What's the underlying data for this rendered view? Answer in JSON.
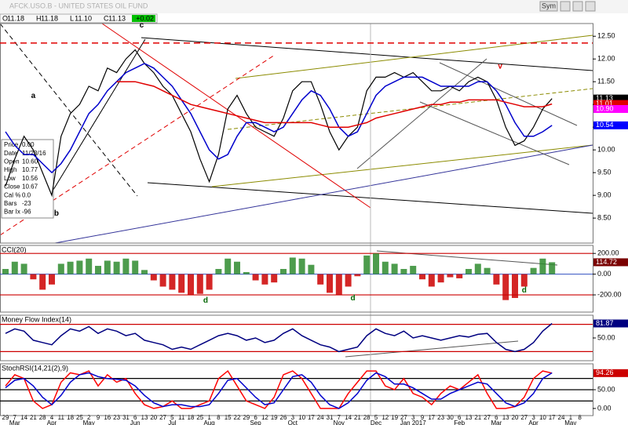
{
  "header": {
    "title": "AFCK.USO.B - UNITED STATES OIL FUND",
    "toolbar": [
      "Sym"
    ],
    "ohlc": [
      {
        "label": "O",
        "value": "11.18"
      },
      {
        "label": "H",
        "value": "11.18"
      },
      {
        "label": "L",
        "value": "11.10"
      },
      {
        "label": "C",
        "value": "11.13"
      }
    ],
    "change": "+0.02"
  },
  "info_box": [
    [
      "Price",
      "0.00"
    ],
    [
      "Date",
      "11/23/16"
    ],
    [
      "Open",
      "10.60"
    ],
    [
      "High",
      "10.77"
    ],
    [
      "Low",
      "10.56"
    ],
    [
      "Close",
      "10.67"
    ],
    [
      "Cal %",
      "0.0"
    ],
    [
      "Bars",
      "-23"
    ],
    [
      "Bar Ix",
      "-96"
    ]
  ],
  "x_axis": {
    "days": [
      "29",
      "7",
      "14",
      "21",
      "28",
      "4",
      "11",
      "18",
      "25",
      "2",
      "9",
      "16",
      "23",
      "31",
      "6",
      "13",
      "20",
      "27",
      "5",
      "11",
      "18",
      "25",
      "1",
      "8",
      "15",
      "22",
      "29",
      "6",
      "12",
      "19",
      "26",
      "3",
      "10",
      "17",
      "24",
      "31",
      "7",
      "14",
      "21",
      "28",
      "5",
      "12",
      "19",
      "27",
      "3",
      "9",
      "17",
      "23",
      "30",
      "6",
      "13",
      "21",
      "27",
      "6",
      "13",
      "20",
      "27",
      "3",
      "10",
      "17",
      "24",
      "1",
      "8"
    ],
    "months": [
      {
        "label": "Mar",
        "at": 1
      },
      {
        "label": "Apr",
        "at": 5
      },
      {
        "label": "May",
        "at": 9
      },
      {
        "label": "Jun",
        "at": 14
      },
      {
        "label": "Jul",
        "at": 18
      },
      {
        "label": "Aug",
        "at": 22
      },
      {
        "label": "Sep",
        "at": 27
      },
      {
        "label": "Oct",
        "at": 31
      },
      {
        "label": "Nov",
        "at": 36
      },
      {
        "label": "Dec",
        "at": 40
      },
      {
        "label": "Jan 2017",
        "at": 44
      },
      {
        "label": "Feb",
        "at": 49
      },
      {
        "label": "Mar",
        "at": 53
      },
      {
        "label": "Apr",
        "at": 57
      },
      {
        "label": "May",
        "at": 61
      }
    ]
  },
  "chart_data": [
    {
      "type": "line",
      "ylim": [
        7.95,
        12.78
      ],
      "yticks": [
        {
          "value": 12.5,
          "label": "12.50"
        },
        {
          "value": 12,
          "label": "12.00"
        },
        {
          "value": 11.5,
          "label": "11.50"
        },
        {
          "value": 11,
          "label": "11.00"
        },
        {
          "value": 10.5,
          "label": "10.50"
        },
        {
          "value": 10,
          "label": "10.00"
        },
        {
          "value": 9.5,
          "label": "9.50"
        },
        {
          "value": 9,
          "label": "9.00"
        },
        {
          "value": 8.5,
          "label": "8.50"
        }
      ],
      "reference_lines": [
        {
          "value": 12.35,
          "color": "#e00000"
        }
      ],
      "series": [
        {
          "name": "Price",
          "color": "#000000",
          "values": [
            9.2,
            9.8,
            10.3,
            10.0,
            9.5,
            9.0,
            10.3,
            10.8,
            11.0,
            11.4,
            11.3,
            11.8,
            11.7,
            12.0,
            12.2,
            11.9,
            11.7,
            11.4,
            11.2,
            10.8,
            10.4,
            9.8,
            9.3,
            9.9,
            10.9,
            11.2,
            10.8,
            10.5,
            10.4,
            10.3,
            10.7,
            11.3,
            11.5,
            11.5,
            11.0,
            10.4,
            10.0,
            10.3,
            10.5,
            11.3,
            11.6,
            11.6,
            11.7,
            11.6,
            11.7,
            11.5,
            11.3,
            11.3,
            11.4,
            11.3,
            11.5,
            11.6,
            11.5,
            11.1,
            10.5,
            10.1,
            10.2,
            10.5,
            10.9,
            11.13
          ]
        },
        {
          "name": "MA",
          "color": "#0000cc",
          "values": [
            10.4,
            10.1,
            9.9,
            9.9,
            9.7,
            9.5,
            9.7,
            10.0,
            10.4,
            10.8,
            11.0,
            11.3,
            11.5,
            11.7,
            11.8,
            11.9,
            11.8,
            11.6,
            11.4,
            11.1,
            10.8,
            10.4,
            10.0,
            9.8,
            9.9,
            10.3,
            10.6,
            10.6,
            10.5,
            10.4,
            10.5,
            10.8,
            11.1,
            11.3,
            11.2,
            10.9,
            10.5,
            10.3,
            10.4,
            10.8,
            11.2,
            11.4,
            11.5,
            11.6,
            11.6,
            11.6,
            11.5,
            11.4,
            11.4,
            11.4,
            11.4,
            11.5,
            11.5,
            11.3,
            11.0,
            10.6,
            10.3,
            10.3,
            10.4,
            10.54
          ]
        },
        {
          "name": "MA long",
          "color": "#e00000",
          "values": [
            null,
            null,
            null,
            null,
            null,
            null,
            null,
            null,
            null,
            null,
            null,
            null,
            11.5,
            11.5,
            11.5,
            11.45,
            11.4,
            11.3,
            11.2,
            11.1,
            11.0,
            10.95,
            10.9,
            10.85,
            10.8,
            10.75,
            10.7,
            10.65,
            10.6,
            10.6,
            10.6,
            10.6,
            10.6,
            10.6,
            10.55,
            10.5,
            10.5,
            10.5,
            10.55,
            10.6,
            10.7,
            10.75,
            10.8,
            10.85,
            10.9,
            10.95,
            11.0,
            11.0,
            11.05,
            11.05,
            11.1,
            11.1,
            11.1,
            11.1,
            11.05,
            11.0,
            10.95,
            10.95,
            10.95,
            11.01
          ]
        }
      ],
      "price_tags": [
        {
          "value": 11.13,
          "label": "11.13",
          "color": "#000000",
          "text_color": "#ffffff"
        },
        {
          "value": 11.01,
          "label": "11.01",
          "color": "#e00000",
          "text_color": "#ffffff"
        },
        {
          "value": 10.9,
          "label": "10.90",
          "color": "#ff00ff",
          "text_color": "#ffffff"
        },
        {
          "value": 10.54,
          "label": "10.54",
          "color": "#0000ff",
          "text_color": "#ffffff"
        }
      ],
      "annotations": [
        {
          "text": "a",
          "x": 3,
          "y": 11.19,
          "color": "#000000"
        },
        {
          "text": "b",
          "x": 5.5,
          "y": 8.6,
          "color": "#000000"
        },
        {
          "text": "c",
          "x": 14.7,
          "y": 12.74,
          "color": "#000000"
        },
        {
          "text": "v",
          "x": 53.4,
          "y": 11.83,
          "color": "#e00000"
        }
      ]
    },
    {
      "type": "bar",
      "title": "CCI(20)",
      "ylim": [
        -366,
        277
      ],
      "up_color": "#2e8b2e",
      "down_color": "#cc0000",
      "yticks": [
        {
          "value": 200,
          "label": "200.00"
        },
        {
          "value": 0,
          "label": "0.00"
        },
        {
          "value": -200,
          "label": "-200.00"
        }
      ],
      "levels": [
        200,
        -200
      ],
      "values": [
        50,
        120,
        100,
        -50,
        -150,
        -100,
        100,
        120,
        130,
        150,
        80,
        130,
        120,
        150,
        130,
        40,
        -60,
        -120,
        -150,
        -180,
        -200,
        -190,
        -150,
        50,
        150,
        120,
        20,
        -60,
        -100,
        -80,
        50,
        160,
        150,
        90,
        -100,
        -180,
        -200,
        -120,
        -20,
        180,
        200,
        120,
        100,
        50,
        80,
        -50,
        -120,
        -80,
        -30,
        -40,
        50,
        100,
        60,
        -100,
        -250,
        -230,
        -120,
        60,
        150,
        114.72
      ],
      "price_tags": [
        {
          "value": 114.72,
          "label": "114.72",
          "color": "#7a0000",
          "text_color": "#ffffff"
        }
      ],
      "annotations": [
        {
          "text": "d",
          "x": 21.6,
          "y": -257,
          "color": "#006600"
        },
        {
          "text": "d",
          "x": 37.5,
          "y": -234,
          "color": "#006600"
        },
        {
          "text": "d",
          "x": 56,
          "y": -158,
          "color": "#006600"
        }
      ]
    },
    {
      "type": "line",
      "title": "Money Flow Index(14)",
      "ylim": [
        0,
        100
      ],
      "yticks": [
        {
          "value": 50,
          "label": "50.00"
        }
      ],
      "levels": [
        80,
        20
      ],
      "series": [
        {
          "name": "MFI",
          "color": "#000080",
          "values": [
            60,
            70,
            65,
            45,
            40,
            35,
            55,
            70,
            65,
            75,
            60,
            70,
            65,
            55,
            60,
            45,
            40,
            35,
            25,
            30,
            25,
            35,
            45,
            55,
            60,
            55,
            45,
            50,
            40,
            45,
            60,
            70,
            55,
            45,
            35,
            30,
            20,
            25,
            30,
            55,
            70,
            60,
            55,
            65,
            50,
            55,
            50,
            45,
            50,
            55,
            52,
            58,
            60,
            40,
            25,
            20,
            25,
            40,
            65,
            81.87
          ]
        }
      ],
      "price_tags": [
        {
          "value": 81.87,
          "label": "81.87",
          "color": "#000080",
          "text_color": "#ffffff"
        }
      ]
    },
    {
      "type": "line",
      "title": "StochRSI(14,21(2),9)",
      "ylim": [
        -19,
        119
      ],
      "yticks": [
        {
          "value": 50,
          "label": "50.00"
        },
        {
          "value": 0,
          "label": "0.00"
        }
      ],
      "levels": [
        80,
        50,
        20
      ],
      "series": [
        {
          "name": "StochRSI",
          "color": "#ff0000",
          "values": [
            60,
            90,
            80,
            20,
            0,
            10,
            70,
            95,
            90,
            100,
            60,
            90,
            70,
            80,
            40,
            10,
            0,
            5,
            20,
            0,
            0,
            10,
            20,
            80,
            100,
            60,
            20,
            10,
            0,
            30,
            90,
            100,
            80,
            40,
            0,
            0,
            0,
            40,
            70,
            100,
            100,
            60,
            50,
            80,
            40,
            30,
            10,
            40,
            60,
            50,
            70,
            90,
            40,
            0,
            0,
            5,
            30,
            80,
            100,
            94.26
          ]
        },
        {
          "name": "Signal",
          "color": "#0000cc",
          "values": [
            55,
            75,
            80,
            60,
            30,
            10,
            35,
            70,
            90,
            95,
            85,
            80,
            78,
            75,
            60,
            35,
            15,
            5,
            10,
            10,
            5,
            5,
            10,
            40,
            75,
            80,
            55,
            30,
            10,
            15,
            50,
            85,
            90,
            70,
            35,
            10,
            0,
            15,
            40,
            75,
            95,
            85,
            65,
            65,
            55,
            40,
            25,
            25,
            40,
            50,
            60,
            70,
            65,
            40,
            15,
            5,
            15,
            40,
            80,
            95
          ]
        }
      ],
      "price_tags": [
        {
          "value": 94.26,
          "label": "94.26",
          "color": "#cc0000",
          "text_color": "#ffffff"
        }
      ]
    }
  ]
}
